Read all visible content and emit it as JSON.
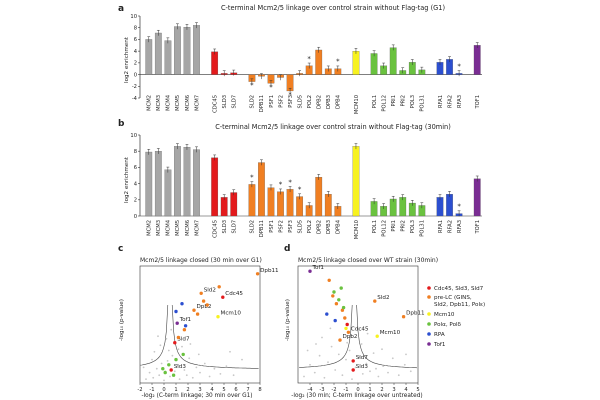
{
  "figure": {
    "panel_labels": [
      "a",
      "b",
      "c",
      "d"
    ]
  },
  "colors": {
    "MCM": "#a6a6a6",
    "CDC": "#e31a1c",
    "PRE": "#f07f22",
    "M10": "#f7f21f",
    "POL": "#6ac23f",
    "RPA": "#2c4fd0",
    "TOF": "#7a2d93"
  },
  "chart_data": [
    {
      "type": "bar",
      "title": "C-terminal Mcm2/5 linkage over control strain without Flag-tag (G1)",
      "ylabel": "log2 enrichment",
      "ylim": [
        -4,
        10
      ],
      "yticks": [
        -4,
        -2,
        0,
        2,
        4,
        6,
        8,
        10
      ],
      "categories": [
        "MCM2",
        "MCM3",
        "MCM4",
        "MCM5",
        "MCM6",
        "MCM7",
        "CDC45",
        "SLD3",
        "SLD7",
        "SLD2",
        "DPB11",
        "PSF1",
        "PSF2",
        "PSF3",
        "SLD5",
        "POL2",
        "DPB2",
        "DPB3",
        "DPB4",
        "MCM10",
        "POL1",
        "POL12",
        "PRI1",
        "PRI2",
        "POL3",
        "POL31",
        "RFA1",
        "RFA2",
        "RFA3",
        "TOF1"
      ],
      "groups": [
        "MCM",
        "MCM",
        "MCM",
        "MCM",
        "MCM",
        "MCM",
        "CDC",
        "CDC",
        "CDC",
        "PRE",
        "PRE",
        "PRE",
        "PRE",
        "PRE",
        "PRE",
        "PRE",
        "PRE",
        "PRE",
        "PRE",
        "M10",
        "POL",
        "POL",
        "POL",
        "POL",
        "POL",
        "POL",
        "RPA",
        "RPA",
        "RPA",
        "TOF"
      ],
      "values": [
        6.0,
        7.1,
        5.8,
        8.2,
        8.1,
        8.4,
        3.9,
        0.2,
        0.3,
        -1.2,
        -0.3,
        -1.5,
        -0.5,
        -2.8,
        0.2,
        1.5,
        4.2,
        1.0,
        1.0,
        4.0,
        3.6,
        1.5,
        4.6,
        0.7,
        2.1,
        0.8,
        2.1,
        2.6,
        0.2,
        5.0
      ],
      "stars": [
        "SLD2",
        "PSF1",
        "PSF3",
        "POL2",
        "DPB4",
        "RFA3"
      ]
    },
    {
      "type": "bar",
      "title": "C-terminal Mcm2/5 linkage over control strain without Flag-tag (30min)",
      "ylabel": "log2 enrichment",
      "ylim": [
        0,
        10
      ],
      "yticks": [
        0,
        2,
        4,
        6,
        8,
        10
      ],
      "categories": [
        "MCM2",
        "MCM3",
        "MCM4",
        "MCM5",
        "MCM6",
        "MCM7",
        "CDC45",
        "SLD3",
        "SLD7",
        "SLD2",
        "DPB11",
        "PSF1",
        "PSF2",
        "PSF3",
        "SLD5",
        "POL2",
        "DPB2",
        "DPB3",
        "DPB4",
        "MCM10",
        "POL1",
        "POL12",
        "PRI1",
        "PRI2",
        "POL3",
        "POL31",
        "RFA1",
        "RFA2",
        "RFA3",
        "TOF1"
      ],
      "groups": [
        "MCM",
        "MCM",
        "MCM",
        "MCM",
        "MCM",
        "MCM",
        "CDC",
        "CDC",
        "CDC",
        "PRE",
        "PRE",
        "PRE",
        "PRE",
        "PRE",
        "PRE",
        "PRE",
        "PRE",
        "PRE",
        "PRE",
        "M10",
        "POL",
        "POL",
        "POL",
        "POL",
        "POL",
        "POL",
        "RPA",
        "RPA",
        "RPA",
        "TOF"
      ],
      "values": [
        7.9,
        8.0,
        5.7,
        8.6,
        8.5,
        8.2,
        7.2,
        2.3,
        2.9,
        3.9,
        6.6,
        3.5,
        3.0,
        3.3,
        2.4,
        1.3,
        4.8,
        2.7,
        1.2,
        8.6,
        1.8,
        1.2,
        2.1,
        2.3,
        1.6,
        1.3,
        2.3,
        2.7,
        0.3,
        4.6
      ],
      "stars": [
        "SLD2",
        "PSF2",
        "PSF3",
        "SLD5",
        "RFA3"
      ]
    },
    {
      "type": "scatter",
      "title": "Mcm2/5 linkage closed (30 min over G1)",
      "xlabel": "-log₂ (C-term linkage; 30 min over G1)",
      "ylabel": "-log₁₀ (p-value)",
      "xlim": [
        -2,
        8
      ],
      "ylim": [
        0,
        9
      ],
      "xticks": [
        -2,
        -1,
        0,
        1,
        2,
        3,
        4,
        5,
        6,
        7,
        8
      ],
      "points": [
        {
          "x": 7.8,
          "y": 8.4,
          "g": "PRE",
          "label": "Dpb11"
        },
        {
          "x": 4.9,
          "y": 6.6,
          "g": "CDC",
          "label": "Cdc45"
        },
        {
          "x": 3.1,
          "y": 6.9,
          "g": "PRE",
          "label": "Sld2"
        },
        {
          "x": 4.5,
          "y": 5.1,
          "g": "M10",
          "label": "Mcm10"
        },
        {
          "x": 2.5,
          "y": 5.6,
          "g": "PRE",
          "label": "Dpb2"
        },
        {
          "x": 1.1,
          "y": 4.6,
          "g": "TOF",
          "label": "Tof1"
        },
        {
          "x": 0.9,
          "y": 3.1,
          "g": "CDC",
          "label": "Sld7"
        },
        {
          "x": 0.6,
          "y": 1.0,
          "g": "CDC",
          "label": "Sld3"
        },
        {
          "x": 3.3,
          "y": 6.3,
          "g": "PRE"
        },
        {
          "x": 3.6,
          "y": 6.0,
          "g": "PRE"
        },
        {
          "x": 4.6,
          "y": 7.4,
          "g": "PRE"
        },
        {
          "x": 2.8,
          "y": 5.3,
          "g": "PRE"
        },
        {
          "x": 1.7,
          "y": 4.1,
          "g": "PRE"
        },
        {
          "x": 1.2,
          "y": 3.5,
          "g": "PRE"
        },
        {
          "x": 1.0,
          "y": 5.5,
          "g": "RPA"
        },
        {
          "x": 1.5,
          "y": 6.1,
          "g": "RPA"
        },
        {
          "x": 1.8,
          "y": 4.4,
          "g": "RPA"
        },
        {
          "x": 1.6,
          "y": 2.2,
          "g": "POL"
        },
        {
          "x": 1.0,
          "y": 1.8,
          "g": "POL"
        },
        {
          "x": 0.4,
          "y": 1.4,
          "g": "POL"
        },
        {
          "x": 0.1,
          "y": 0.8,
          "g": "POL"
        },
        {
          "x": 0.8,
          "y": 0.6,
          "g": "POL"
        },
        {
          "x": -0.1,
          "y": 1.1,
          "g": "POL"
        }
      ],
      "background_points": [
        [
          -1.5,
          0.3
        ],
        [
          -1.2,
          0.8
        ],
        [
          -0.9,
          0.4
        ],
        [
          -0.6,
          1.1
        ],
        [
          -0.4,
          0.6
        ],
        [
          -0.2,
          1.5
        ],
        [
          0.0,
          0.2
        ],
        [
          0.1,
          0.9
        ],
        [
          0.3,
          1.7
        ],
        [
          0.5,
          0.5
        ],
        [
          0.7,
          2.1
        ],
        [
          0.9,
          0.9
        ],
        [
          1.1,
          1.4
        ],
        [
          1.3,
          0.3
        ],
        [
          1.5,
          2.8
        ],
        [
          1.7,
          1.0
        ],
        [
          1.9,
          0.6
        ],
        [
          2.1,
          1.9
        ],
        [
          2.4,
          0.4
        ],
        [
          2.7,
          1.2
        ],
        [
          3.0,
          0.8
        ],
        [
          3.4,
          1.5
        ],
        [
          3.8,
          0.5
        ],
        [
          4.2,
          1.1
        ],
        [
          4.7,
          0.7
        ],
        [
          5.2,
          1.3
        ],
        [
          5.8,
          0.6
        ],
        [
          -0.8,
          2.4
        ],
        [
          -0.3,
          2.9
        ],
        [
          0.2,
          3.4
        ],
        [
          0.6,
          4.1
        ],
        [
          -1.0,
          1.8
        ],
        [
          -0.5,
          3.6
        ],
        [
          0.4,
          2.5
        ],
        [
          2.2,
          3.0
        ],
        [
          2.9,
          2.2
        ],
        [
          6.5,
          1.8
        ],
        [
          5.5,
          2.4
        ],
        [
          -1.7,
          1.2
        ],
        [
          1.2,
          2.6
        ]
      ]
    },
    {
      "type": "scatter",
      "title": "Mcm2/5 linkage closed over WT strain (30min)",
      "xlabel": "-log₂ (30 min; C-term linkage over untreated)",
      "ylabel": "-log₁₀ (p-value)",
      "xlim": [
        -5,
        5
      ],
      "ylim": [
        0,
        9
      ],
      "xticks": [
        -4,
        -3,
        -2,
        -1,
        0,
        1,
        2,
        3,
        4,
        5
      ],
      "points": [
        {
          "x": -4.0,
          "y": 8.6,
          "g": "TOF",
          "label": "Tof1"
        },
        {
          "x": 1.4,
          "y": 6.3,
          "g": "PRE",
          "label": "Sld2"
        },
        {
          "x": 3.8,
          "y": 5.1,
          "g": "PRE",
          "label": "Dpb11"
        },
        {
          "x": 1.6,
          "y": 3.6,
          "g": "M10",
          "label": "Mcm10"
        },
        {
          "x": -0.8,
          "y": 3.9,
          "g": "PRE",
          "label": "Cdc45"
        },
        {
          "x": -1.5,
          "y": 3.3,
          "g": "PRE",
          "label": "Dpb2"
        },
        {
          "x": -0.4,
          "y": 1.7,
          "g": "CDC",
          "label": "Sld7"
        },
        {
          "x": -0.4,
          "y": 1.0,
          "g": "CDC",
          "label": "Sld3"
        },
        {
          "x": -2.4,
          "y": 7.9,
          "g": "PRE"
        },
        {
          "x": -2.1,
          "y": 6.7,
          "g": "PRE"
        },
        {
          "x": -1.8,
          "y": 6.1,
          "g": "PRE"
        },
        {
          "x": -1.3,
          "y": 5.6,
          "g": "PRE"
        },
        {
          "x": -1.1,
          "y": 5.0,
          "g": "PRE"
        },
        {
          "x": -0.9,
          "y": 4.5,
          "g": "CDC"
        },
        {
          "x": -1.4,
          "y": 7.3,
          "g": "POL"
        },
        {
          "x": -2.0,
          "y": 7.0,
          "g": "POL"
        },
        {
          "x": -1.6,
          "y": 6.4,
          "g": "POL"
        },
        {
          "x": -1.2,
          "y": 5.8,
          "g": "POL"
        },
        {
          "x": -2.6,
          "y": 5.3,
          "g": "RPA"
        },
        {
          "x": -1.9,
          "y": 4.8,
          "g": "RPA"
        },
        {
          "x": -1.0,
          "y": 4.2,
          "g": "M10"
        }
      ],
      "background_points": [
        [
          -4.5,
          0.5
        ],
        [
          -4.0,
          1.4
        ],
        [
          -3.6,
          0.8
        ],
        [
          -3.2,
          2.1
        ],
        [
          -2.8,
          0.4
        ],
        [
          -2.5,
          1.6
        ],
        [
          -2.2,
          2.8
        ],
        [
          -1.9,
          1.0
        ],
        [
          -1.6,
          2.2
        ],
        [
          -1.3,
          0.6
        ],
        [
          -1.0,
          1.8
        ],
        [
          -0.7,
          2.5
        ],
        [
          -0.5,
          0.3
        ],
        [
          -0.2,
          1.2
        ],
        [
          0.1,
          2.0
        ],
        [
          0.4,
          0.7
        ],
        [
          0.7,
          1.5
        ],
        [
          1.0,
          0.9
        ],
        [
          1.3,
          2.3
        ],
        [
          1.7,
          0.5
        ],
        [
          2.1,
          1.3
        ],
        [
          2.5,
          0.8
        ],
        [
          2.9,
          1.9
        ],
        [
          3.4,
          0.6
        ],
        [
          3.9,
          1.4
        ],
        [
          4.4,
          0.9
        ],
        [
          -3.0,
          3.5
        ],
        [
          -2.3,
          4.2
        ],
        [
          -3.5,
          3.0
        ],
        [
          0.3,
          3.0
        ],
        [
          0.8,
          3.8
        ],
        [
          2.0,
          2.6
        ],
        [
          -0.9,
          3.1
        ],
        [
          1.5,
          1.1
        ],
        [
          -4.2,
          2.5
        ],
        [
          4.0,
          2.2
        ]
      ]
    }
  ],
  "legend": {
    "items": [
      {
        "text": "Cdc45, Sld3, Sld7",
        "g": "CDC"
      },
      {
        "text": "pre-LC (GINS,",
        "g": "PRE"
      },
      {
        "text": "Sld2, Dpb11, Polε)",
        "g": ""
      },
      {
        "text": "Mcm10",
        "g": "M10"
      },
      {
        "text": "Polα, Polδ",
        "g": "POL"
      },
      {
        "text": "RPA",
        "g": "RPA"
      },
      {
        "text": "Tof1",
        "g": "TOF"
      }
    ]
  }
}
